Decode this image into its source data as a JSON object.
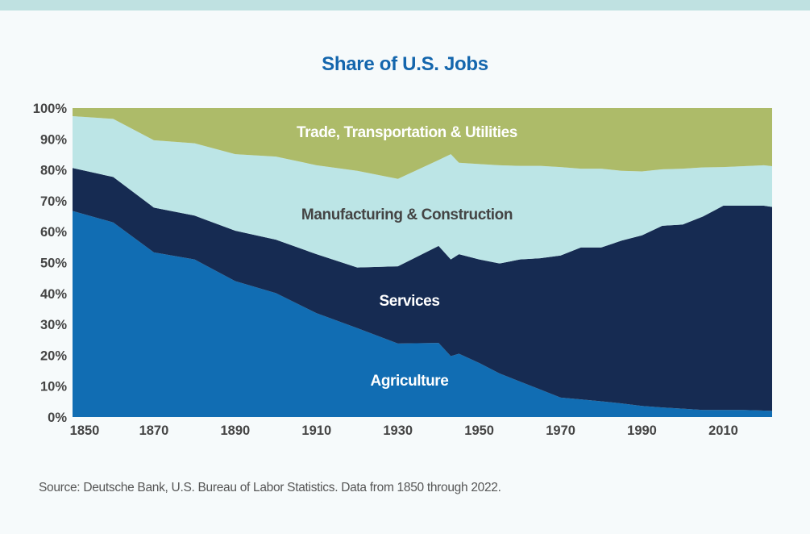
{
  "chart_data": {
    "type": "area",
    "stacked": true,
    "title": "Share of U.S. Jobs",
    "xlabel": "",
    "ylabel": "",
    "xlim": [
      1850,
      2022
    ],
    "ylim": [
      0,
      100
    ],
    "x_ticks": [
      "1850",
      "1870",
      "1890",
      "1910",
      "1930",
      "1950",
      "1970",
      "1990",
      "2010"
    ],
    "y_ticks": [
      "0%",
      "10%",
      "20%",
      "30%",
      "40%",
      "50%",
      "60%",
      "70%",
      "80%",
      "90%",
      "100%"
    ],
    "grid": false,
    "legend": "inline labels",
    "x": [
      1850,
      1860,
      1870,
      1880,
      1890,
      1900,
      1910,
      1920,
      1930,
      1940,
      1943,
      1945,
      1950,
      1955,
      1960,
      1965,
      1970,
      1975,
      1980,
      1985,
      1990,
      1995,
      2000,
      2005,
      2010,
      2015,
      2020,
      2022
    ],
    "series": [
      {
        "name": "Agriculture",
        "color": "#116db3",
        "label_color": "#ffffff",
        "values": [
          66.7,
          63.0,
          53.3,
          51.0,
          44.0,
          40.1,
          33.6,
          28.8,
          23.8,
          24.0,
          19.7,
          20.5,
          17.5,
          14.1,
          11.5,
          8.9,
          6.3,
          5.7,
          5.1,
          4.4,
          3.6,
          3.1,
          2.7,
          2.3,
          2.3,
          2.3,
          2.1,
          2.0
        ]
      },
      {
        "name": "Services",
        "color": "#162b52",
        "label_color": "#ffffff",
        "values": [
          13.9,
          14.7,
          14.5,
          14.2,
          16.3,
          17.3,
          19.1,
          19.6,
          25.0,
          31.4,
          31.3,
          32.2,
          33.5,
          35.6,
          39.5,
          42.5,
          46.0,
          49.2,
          49.8,
          52.7,
          55.2,
          58.8,
          59.6,
          62.6,
          66.1,
          66.1,
          66.3,
          66.0
        ]
      },
      {
        "name": "Manufacturing & Construction",
        "color": "#bce5e6",
        "label_color": "#444444",
        "values": [
          16.8,
          18.8,
          21.8,
          23.4,
          24.8,
          26.9,
          28.8,
          31.3,
          28.3,
          27.8,
          34.1,
          29.6,
          30.9,
          31.8,
          30.3,
          29.9,
          28.6,
          25.5,
          25.5,
          22.6,
          20.7,
          18.3,
          18.1,
          15.9,
          12.5,
          12.8,
          13.1,
          13.2
        ]
      },
      {
        "name": "Trade, Transportation & Utilities",
        "color": "#adbb69",
        "label_color": "#ffffff",
        "values": [
          2.6,
          3.5,
          10.4,
          11.4,
          14.9,
          15.7,
          18.5,
          20.3,
          22.9,
          16.8,
          14.9,
          17.7,
          18.1,
          18.5,
          18.7,
          18.7,
          19.1,
          19.6,
          19.6,
          20.3,
          20.5,
          19.8,
          19.6,
          19.2,
          19.1,
          18.8,
          18.5,
          18.8
        ]
      }
    ]
  },
  "source": "Source: Deutsche Bank, U.S. Bureau of Labor Statistics. Data from 1850 through 2022."
}
